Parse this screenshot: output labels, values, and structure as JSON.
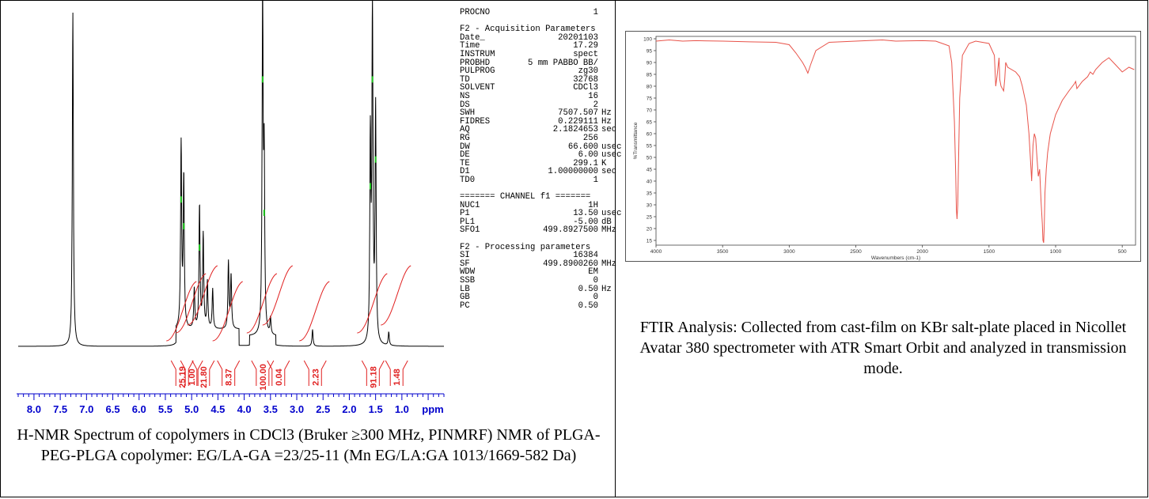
{
  "nmr": {
    "params_top": [
      {
        "key": "PROCNO",
        "val": "1",
        "unit": ""
      }
    ],
    "acq_header": "F2 - Acquisition Parameters",
    "acq_params": [
      {
        "key": "Date_",
        "val": "20201103",
        "unit": ""
      },
      {
        "key": "Time",
        "val": "17.29",
        "unit": ""
      },
      {
        "key": "INSTRUM",
        "val": "spect",
        "unit": ""
      },
      {
        "key": "PROBHD",
        "val": "5 mm PABBO BB/",
        "unit": ""
      },
      {
        "key": "PULPROG",
        "val": "zg30",
        "unit": ""
      },
      {
        "key": "TD",
        "val": "32768",
        "unit": ""
      },
      {
        "key": "SOLVENT",
        "val": "CDCl3",
        "unit": ""
      },
      {
        "key": "NS",
        "val": "16",
        "unit": ""
      },
      {
        "key": "DS",
        "val": "2",
        "unit": ""
      },
      {
        "key": "SWH",
        "val": "7507.507",
        "unit": "Hz"
      },
      {
        "key": "FIDRES",
        "val": "0.229111",
        "unit": "Hz"
      },
      {
        "key": "AQ",
        "val": "2.1824653",
        "unit": "sec"
      },
      {
        "key": "RG",
        "val": "256",
        "unit": ""
      },
      {
        "key": "DW",
        "val": "66.600",
        "unit": "usec"
      },
      {
        "key": "DE",
        "val": "6.00",
        "unit": "usec"
      },
      {
        "key": "TE",
        "val": "299.1",
        "unit": "K"
      },
      {
        "key": "D1",
        "val": "1.00000000",
        "unit": "sec"
      },
      {
        "key": "TD0",
        "val": "1",
        "unit": ""
      }
    ],
    "channel_header": "======= CHANNEL f1 =======",
    "channel_params": [
      {
        "key": "NUC1",
        "val": "1H",
        "unit": ""
      },
      {
        "key": "P1",
        "val": "13.50",
        "unit": "usec"
      },
      {
        "key": "PL1",
        "val": "-5.00",
        "unit": "dB"
      },
      {
        "key": "SFO1",
        "val": "499.8927500",
        "unit": "MHz"
      }
    ],
    "proc_header": "F2 - Processing parameters",
    "proc_params": [
      {
        "key": "SI",
        "val": "16384",
        "unit": ""
      },
      {
        "key": "SF",
        "val": "499.8900260",
        "unit": "MHz"
      },
      {
        "key": "WDW",
        "val": "EM",
        "unit": ""
      },
      {
        "key": "SSB",
        "val": "0",
        "unit": ""
      },
      {
        "key": "LB",
        "val": "0.50",
        "unit": "Hz"
      },
      {
        "key": "GB",
        "val": "0",
        "unit": ""
      },
      {
        "key": "PC",
        "val": "0.50",
        "unit": ""
      }
    ],
    "caption": "H-NMR Spectrum of copolymers in CDCl3 (Bruker ≥300 MHz, PINMRF) NMR of PLGA-PEG-PLGA copolymer: EG/LA-GA =23/25-11 (Mn EG/LA:GA 1013/1669-582 Da)"
  },
  "ftir": {
    "caption": "FTIR Analysis: Collected from cast-film on KBr salt-plate placed in Nicollet Avatar 380 spectrometer with ATR Smart Orbit and analyzed in transmission mode."
  },
  "colors": {
    "nmr_line": "#000000",
    "integral": "#e02020",
    "axis_blue": "#0000cc",
    "ftir_line": "#e8534a",
    "peak_marker": "#22cc22"
  },
  "chart_data": [
    {
      "type": "line",
      "xlabel": "ppm",
      "x_ticks": [
        "8.0",
        "7.5",
        "7.0",
        "6.5",
        "6.0",
        "5.5",
        "5.0",
        "4.5",
        "4.0",
        "3.5",
        "3.0",
        "2.5",
        "2.0",
        "1.5",
        "1.0"
      ],
      "xlim": [
        8.3,
        0.2
      ],
      "peaks": [
        {
          "ppm": 7.26,
          "height": 1.0
        },
        {
          "ppm": 5.2,
          "height": 0.55
        },
        {
          "ppm": 5.15,
          "height": 0.45
        },
        {
          "ppm": 4.95,
          "height": 0.12
        },
        {
          "ppm": 4.85,
          "height": 0.37
        },
        {
          "ppm": 4.78,
          "height": 0.28
        },
        {
          "ppm": 4.7,
          "height": 0.14
        },
        {
          "ppm": 4.6,
          "height": 0.12
        },
        {
          "ppm": 4.3,
          "height": 0.2
        },
        {
          "ppm": 4.25,
          "height": 0.16
        },
        {
          "ppm": 3.65,
          "height": 1.0
        },
        {
          "ppm": 3.62,
          "height": 0.5
        },
        {
          "ppm": 3.5,
          "height": 0.05
        },
        {
          "ppm": 2.7,
          "height": 0.05
        },
        {
          "ppm": 1.6,
          "height": 0.6
        },
        {
          "ppm": 1.56,
          "height": 1.0
        },
        {
          "ppm": 1.5,
          "height": 0.7
        },
        {
          "ppm": 1.25,
          "height": 0.04
        }
      ],
      "integrals": [
        {
          "label": "25.19",
          "ppm": 5.18
        },
        {
          "label": "1.00",
          "ppm": 5.0
        },
        {
          "label": "21.80",
          "ppm": 4.78
        },
        {
          "label": "8.37",
          "ppm": 4.3
        },
        {
          "label": "100.00",
          "ppm": 3.65
        },
        {
          "label": "0.04",
          "ppm": 3.35
        },
        {
          "label": "2.23",
          "ppm": 2.65
        },
        {
          "label": "91.18",
          "ppm": 1.55
        },
        {
          "label": "1.48",
          "ppm": 1.1
        }
      ]
    },
    {
      "type": "line",
      "xlabel": "Wavenumbers (cm-1)",
      "ylabel": "%Transmittance",
      "xlim": [
        4000,
        400
      ],
      "ylim": [
        13,
        101
      ],
      "x_ticks": [
        4000,
        3500,
        3000,
        2500,
        2000,
        1500,
        1000,
        500
      ],
      "y_ticks": [
        15,
        20,
        25,
        30,
        35,
        40,
        45,
        50,
        55,
        60,
        65,
        70,
        75,
        80,
        85,
        90,
        95,
        100
      ],
      "x": [
        4000,
        3900,
        3800,
        3700,
        3500,
        3300,
        3100,
        3000,
        2950,
        2900,
        2880,
        2860,
        2840,
        2800,
        2700,
        2500,
        2300,
        2200,
        2000,
        1900,
        1800,
        1780,
        1760,
        1750,
        1745,
        1740,
        1735,
        1720,
        1700,
        1650,
        1600,
        1500,
        1460,
        1455,
        1450,
        1440,
        1425,
        1420,
        1410,
        1390,
        1382,
        1375,
        1360,
        1300,
        1270,
        1250,
        1220,
        1200,
        1185,
        1180,
        1170,
        1160,
        1150,
        1140,
        1130,
        1120,
        1110,
        1100,
        1095,
        1090,
        1085,
        1080,
        1070,
        1060,
        1050,
        1045,
        1040,
        1000,
        950,
        900,
        860,
        850,
        840,
        800,
        760,
        740,
        720,
        700,
        650,
        600,
        550,
        500,
        450,
        410
      ],
      "y": [
        99,
        99.5,
        99,
        99.2,
        99,
        98.7,
        98.5,
        97.5,
        94,
        90,
        88,
        85.5,
        89,
        95,
        98.5,
        99,
        99.5,
        99,
        99.2,
        99,
        97,
        90,
        65,
        42,
        28,
        24,
        30,
        75,
        93,
        98,
        99,
        98,
        93,
        87,
        80,
        84,
        92,
        83,
        80,
        78,
        83,
        90,
        88,
        86,
        84,
        80,
        72,
        60,
        45,
        40,
        55,
        60,
        58,
        50,
        42,
        45,
        32,
        22,
        15,
        14,
        22,
        35,
        45,
        52,
        56,
        58,
        60,
        68,
        74,
        78,
        81,
        82,
        79,
        82,
        84,
        86,
        85,
        87,
        90,
        92,
        89,
        86,
        88,
        87
      ]
    }
  ]
}
